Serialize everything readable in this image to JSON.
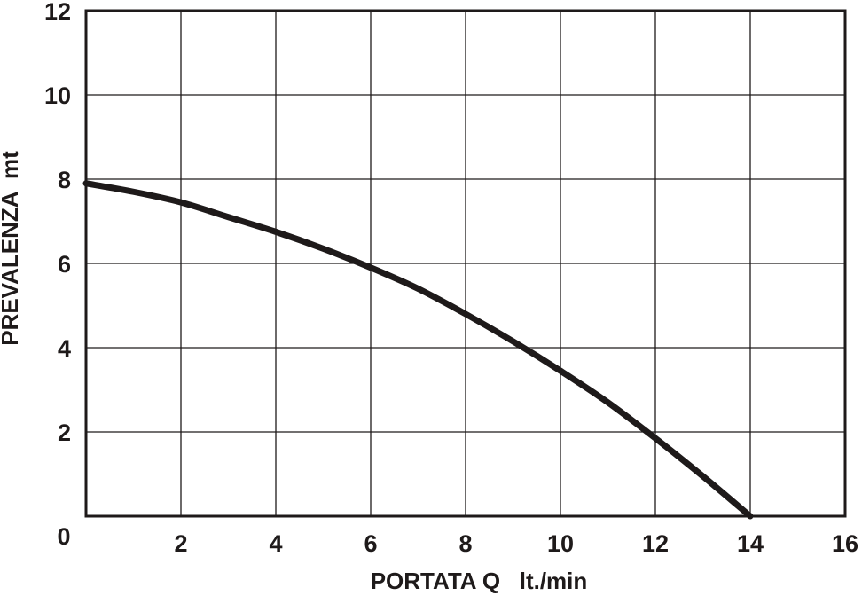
{
  "chart_data": {
    "type": "line",
    "xlabel": "PORTATA Q   lt./min",
    "ylabel": "PREVALENZA  mt",
    "xlim": [
      0,
      16
    ],
    "ylim": [
      0,
      12
    ],
    "x_ticks": [
      "0",
      "2",
      "4",
      "6",
      "8",
      "10",
      "12",
      "14",
      "16"
    ],
    "y_ticks": [
      "2",
      "4",
      "6",
      "8",
      "10",
      "12"
    ],
    "grid": true,
    "series": [
      {
        "x": [
          0,
          1,
          2,
          3,
          4,
          5,
          6,
          7,
          8,
          9,
          10,
          11,
          12,
          13,
          14
        ],
        "y": [
          7.9,
          7.7,
          7.45,
          7.1,
          6.75,
          6.35,
          5.9,
          5.4,
          4.8,
          4.15,
          3.45,
          2.7,
          1.85,
          0.95,
          0
        ]
      }
    ]
  }
}
